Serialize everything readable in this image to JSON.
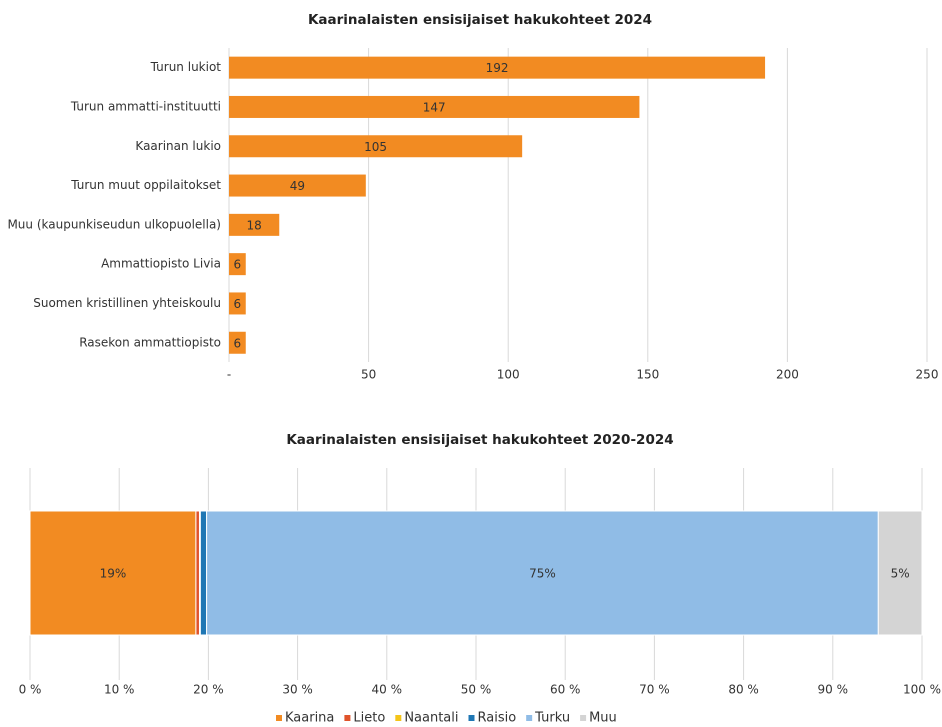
{
  "chart_data": [
    {
      "type": "hbar",
      "title": "Kaarinalaisten ensisijaiset hakukohteet 2024",
      "categories": [
        "Turun lukiot",
        "Turun ammatti-instituutti",
        "Kaarinan lukio",
        "Turun muut oppilaitokset",
        "Muu (kaupunkiseudun ulkopuolella)",
        "Ammattiopisto Livia",
        "Suomen kristillinen yhteiskoulu",
        "Rasekon ammattiopisto"
      ],
      "values": [
        192,
        147,
        105,
        49,
        18,
        6,
        6,
        6
      ],
      "color": "#f28b22",
      "xlim": [
        0,
        250
      ],
      "xticks": [
        {
          "value": 0,
          "label": "-"
        },
        50,
        100,
        150,
        200,
        250
      ],
      "grid": true
    },
    {
      "type": "stacked_hbar",
      "title": "Kaarinalaisten ensisijaiset hakukohteet 2020-2024",
      "series": [
        {
          "name": "Kaarina",
          "color": "#f28b22",
          "values": [
            18.6
          ],
          "value_labels": [
            "19%"
          ]
        },
        {
          "name": "Lieto",
          "color": "#e0532a",
          "values": [
            0.4
          ]
        },
        {
          "name": "Naantali",
          "color": "#f5c518",
          "values": [
            0.1
          ]
        },
        {
          "name": "Raisio",
          "color": "#1f77b4",
          "values": [
            0.7
          ]
        },
        {
          "name": "Turku",
          "color": "#90bce6",
          "values": [
            75.3
          ],
          "value_labels": [
            "75%"
          ]
        },
        {
          "name": "Muu",
          "color": "#d4d4d4",
          "values": [
            4.9
          ],
          "value_labels": [
            "5%"
          ]
        }
      ],
      "xlim": [
        0,
        100
      ],
      "xticks": [
        {
          "value": 0,
          "label": "0 %"
        },
        {
          "value": 10,
          "label": "10 %"
        },
        {
          "value": 20,
          "label": "20 %"
        },
        {
          "value": 30,
          "label": "30 %"
        },
        {
          "value": 40,
          "label": "40 %"
        },
        {
          "value": 50,
          "label": "50 %"
        },
        {
          "value": 60,
          "label": "60 %"
        },
        {
          "value": 70,
          "label": "70 %"
        },
        {
          "value": 80,
          "label": "80 %"
        },
        {
          "value": 90,
          "label": "90 %"
        },
        {
          "value": 100,
          "label": "100 %"
        }
      ],
      "grid": true,
      "legend": "bottom"
    }
  ]
}
